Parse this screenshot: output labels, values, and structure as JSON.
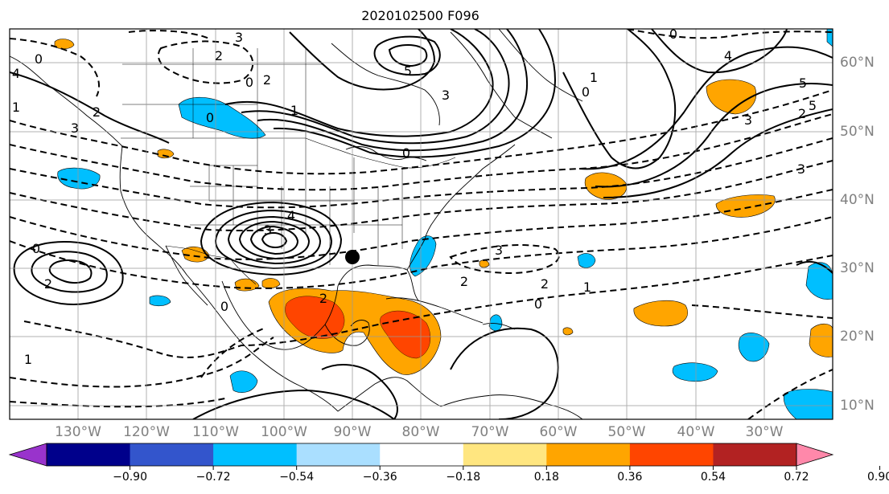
{
  "title": "2020102500 F096",
  "map": {
    "projection": "Plate Carree",
    "extent_lon": [
      -140,
      -18
    ],
    "extent_lat": [
      8,
      65
    ],
    "lon_ticks": [
      "130°W",
      "120°W",
      "110°W",
      "100°W",
      "90°W",
      "80°W",
      "70°W",
      "60°W",
      "50°W",
      "40°W",
      "30°W"
    ],
    "lat_ticks": [
      "60°N",
      "50°N",
      "40°N",
      "30°N",
      "20°N",
      "10°N"
    ],
    "gridlines": true,
    "marker": "black filled circle near Louisiana coast"
  },
  "colorbar": {
    "ticks": [
      "−0.90",
      "−0.72",
      "−0.54",
      "−0.36",
      "−0.18",
      "0.18",
      "0.36",
      "0.54",
      "0.72",
      "0.90"
    ],
    "colors": [
      "#9933cc",
      "#00008b",
      "#3355cc",
      "#00bfff",
      "#aadfff",
      "#ffffff",
      "#ffe680",
      "#ffa500",
      "#ff4500",
      "#b22222",
      "#ff88aa"
    ],
    "extend": "both"
  },
  "contour_labels": [
    {
      "text": "0"
    },
    {
      "text": "3"
    },
    {
      "text": "2"
    },
    {
      "text": "5"
    },
    {
      "text": "3"
    },
    {
      "text": "0"
    },
    {
      "text": "4"
    },
    {
      "text": "5"
    },
    {
      "text": "1"
    },
    {
      "text": "0"
    },
    {
      "text": "3"
    },
    {
      "text": "2"
    },
    {
      "text": "3"
    },
    {
      "text": "0"
    },
    {
      "text": "1"
    },
    {
      "text": "2"
    },
    {
      "text": "4"
    },
    {
      "text": "3"
    },
    {
      "text": "0"
    },
    {
      "text": "4"
    },
    {
      "text": "5"
    },
    {
      "text": "2"
    },
    {
      "text": "1"
    },
    {
      "text": "3"
    },
    {
      "text": "0"
    },
    {
      "text": "3"
    },
    {
      "text": "2"
    },
    {
      "text": "0"
    },
    {
      "text": "0"
    },
    {
      "text": "2"
    },
    {
      "text": "1"
    },
    {
      "text": "2"
    },
    {
      "text": "1"
    },
    {
      "text": "0"
    },
    {
      "text": "2"
    }
  ]
}
